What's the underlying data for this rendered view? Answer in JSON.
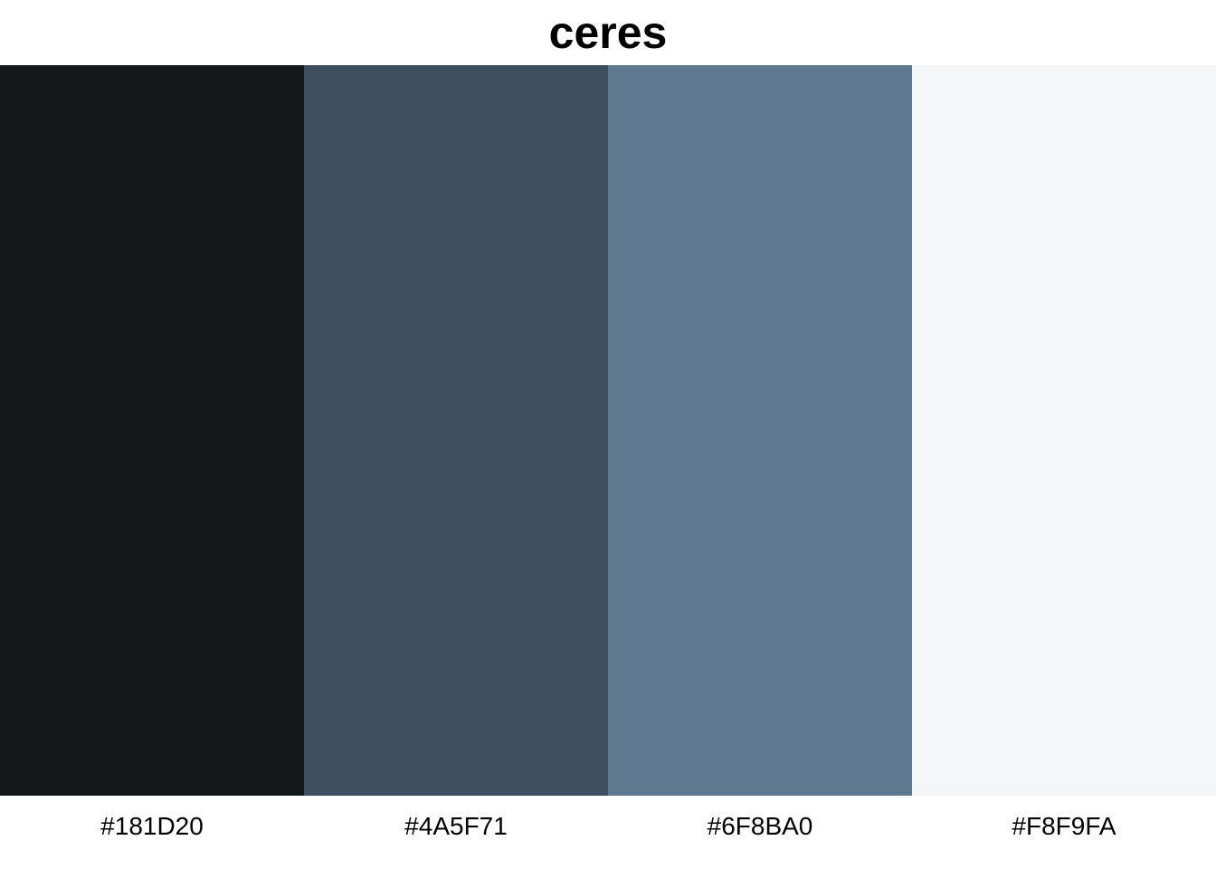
{
  "palette": {
    "title": "ceres",
    "colors": [
      {
        "hex": "#181D20",
        "swatch": "#14181B"
      },
      {
        "hex": "#4A5F71",
        "swatch": "#3C4E60"
      },
      {
        "hex": "#6F8BA0",
        "swatch": "#5E788F"
      },
      {
        "hex": "#F8F9FA",
        "swatch": "#F5F6F8"
      }
    ]
  }
}
